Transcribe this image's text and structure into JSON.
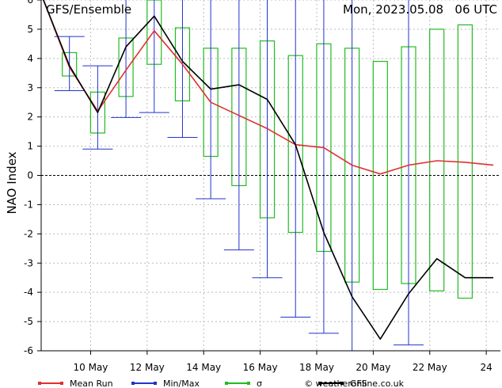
{
  "chart_data": {
    "type": "line",
    "title": "GFS/Ensemble",
    "date_label": "Mon, 2023.05.08   06 UTC",
    "ylabel": "NAO Index",
    "xlabel": "",
    "ylim": [
      -6,
      6
    ],
    "yticks": [
      -6,
      -5,
      -4,
      -3,
      -2,
      -1,
      0,
      1,
      2,
      3,
      4,
      5,
      6
    ],
    "xlim": [
      "2023-05-08 06 UTC",
      "2023-05-24 12 UTC"
    ],
    "xticks": [
      {
        "date": "2023-05-10",
        "label": "10 May"
      },
      {
        "date": "2023-05-12",
        "label": "12 May"
      },
      {
        "date": "2023-05-14",
        "label": "14 May"
      },
      {
        "date": "2023-05-16",
        "label": "16 May"
      },
      {
        "date": "2023-05-18",
        "label": "18 May"
      },
      {
        "date": "2023-05-20",
        "label": "20 May"
      },
      {
        "date": "2023-05-22",
        "label": "22 May"
      },
      {
        "date": "2023-05-24",
        "label": "24"
      }
    ],
    "x": [
      "2023-05-08 06 UTC",
      "2023-05-09 06 UTC",
      "2023-05-10 06 UTC",
      "2023-05-11 06 UTC",
      "2023-05-12 06 UTC",
      "2023-05-13 06 UTC",
      "2023-05-14 06 UTC",
      "2023-05-15 06 UTC",
      "2023-05-16 06 UTC",
      "2023-05-17 06 UTC",
      "2023-05-18 06 UTC",
      "2023-05-19 06 UTC",
      "2023-05-20 06 UTC",
      "2023-05-21 06 UTC",
      "2023-05-22 06 UTC",
      "2023-05-23 06 UTC",
      "2023-05-24 06 UTC"
    ],
    "series": [
      {
        "name": "Mean Run",
        "kind": "line",
        "color": "#e03030",
        "values": [
          6.2,
          3.7,
          2.2,
          3.6,
          4.95,
          3.8,
          2.5,
          2.05,
          1.6,
          1.05,
          0.95,
          0.35,
          0.05,
          0.35,
          0.5,
          0.45,
          0.35
        ]
      },
      {
        "name": "GFS",
        "kind": "line",
        "color": "#000000",
        "values": [
          6.2,
          3.75,
          2.15,
          4.4,
          5.45,
          3.9,
          2.95,
          3.1,
          2.6,
          1.05,
          -1.95,
          -4.15,
          -5.6,
          -4.05,
          -2.85,
          -3.5,
          -3.5
        ]
      },
      {
        "name": "Min/Max",
        "kind": "whisker",
        "color": "#2233cc",
        "max": [
          null,
          4.75,
          3.75,
          6.5,
          6.5,
          6.5,
          6.5,
          6.5,
          6.5,
          6.5,
          6.5,
          6.5,
          null,
          6.5,
          null,
          null,
          null
        ],
        "min": [
          null,
          2.9,
          0.9,
          1.98,
          2.15,
          1.3,
          -0.8,
          -2.55,
          -3.5,
          -4.85,
          -5.4,
          -6.5,
          null,
          -5.8,
          null,
          null,
          null
        ]
      },
      {
        "name": "σ",
        "kind": "box",
        "color": "#22bb22",
        "upper": [
          null,
          4.2,
          2.85,
          4.7,
          6.5,
          5.05,
          4.35,
          4.35,
          4.6,
          4.1,
          4.5,
          4.35,
          3.9,
          4.4,
          5.0,
          5.15,
          null
        ],
        "lower": [
          null,
          3.4,
          1.45,
          2.7,
          3.8,
          2.55,
          0.65,
          -0.35,
          -1.45,
          -1.95,
          -2.6,
          -3.65,
          -3.9,
          -3.7,
          -3.95,
          -4.2,
          null
        ]
      }
    ],
    "reference_line": 0,
    "grid": true,
    "legend_position": "bottom",
    "credit": "© weatheronline.co.uk"
  }
}
